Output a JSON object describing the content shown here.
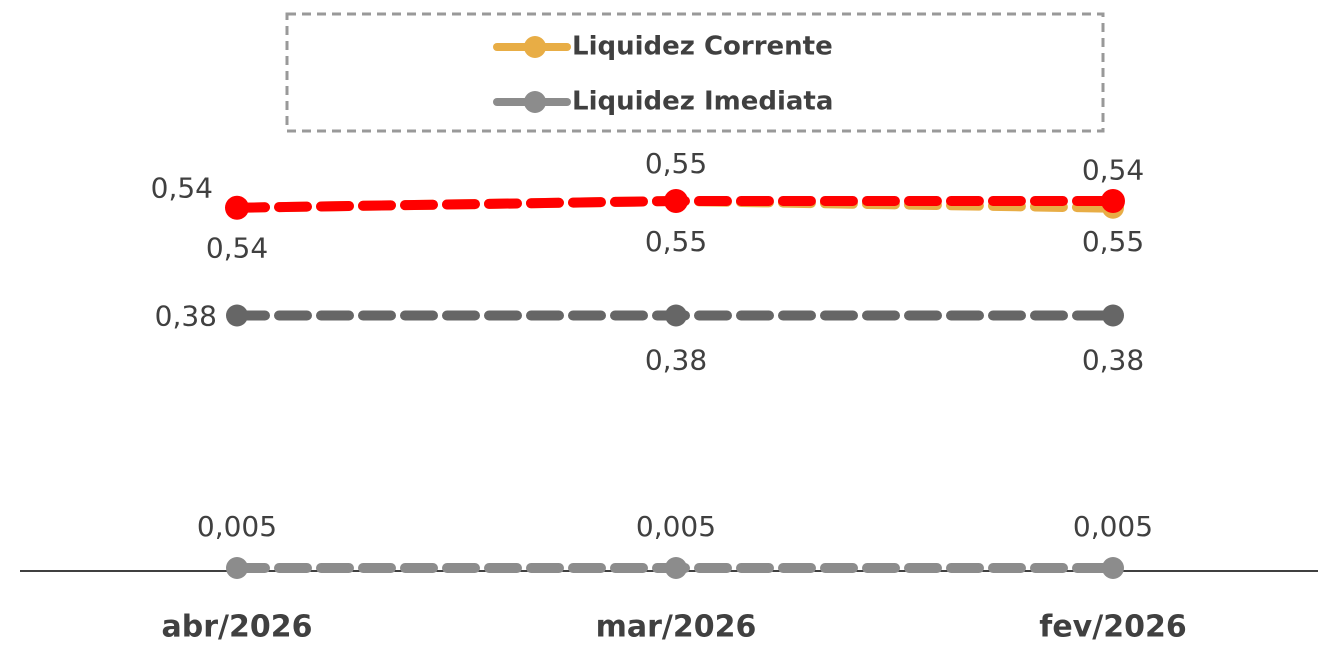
{
  "chart_data": {
    "type": "line",
    "categories": [
      "abr/2026",
      "mar/2026",
      "fev/2026"
    ],
    "series": [
      {
        "name": "Liquidez Corrente",
        "color": "#e8ad45",
        "values": [
          0.54,
          0.55,
          0.54
        ],
        "value_labels": [
          "0,54",
          "0,55",
          "0,54"
        ]
      },
      {
        "color": "#ff0000",
        "values": [
          0.54,
          0.55,
          0.55
        ],
        "value_labels": [
          "0,54",
          "0,55",
          "0,55"
        ]
      },
      {
        "color": "#666666",
        "values": [
          0.38,
          0.38,
          0.38
        ],
        "value_labels": [
          "0,38",
          "0,38",
          "0,38"
        ]
      },
      {
        "name": "Liquidez Imediata",
        "color": "#8c8c8c",
        "values": [
          0.005,
          0.005,
          0.005
        ],
        "value_labels": [
          "0,005",
          "0,005",
          "0,005"
        ]
      }
    ],
    "legend": "top"
  }
}
